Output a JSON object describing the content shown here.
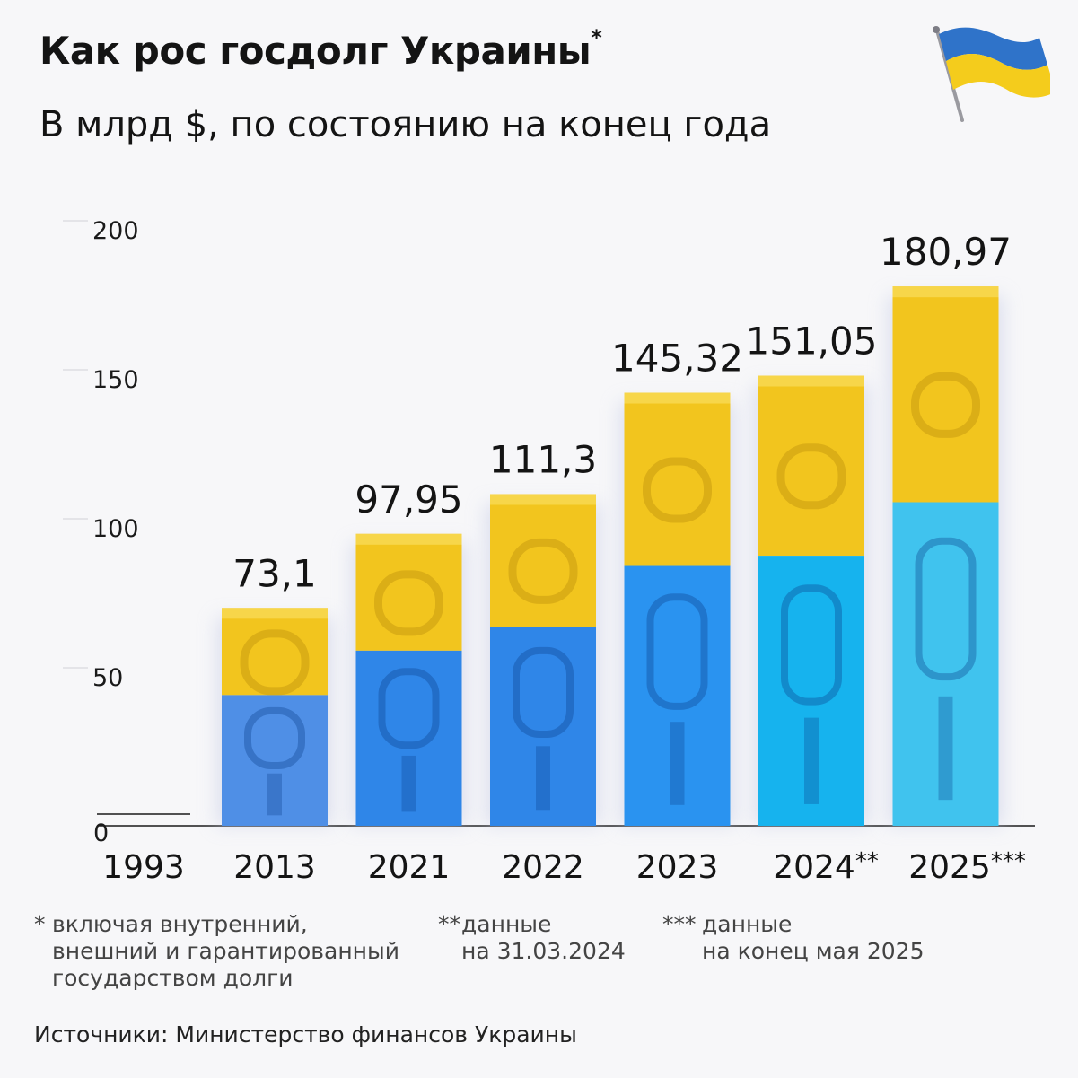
{
  "title": "Как рос госдолг Украины",
  "title_mark": "*",
  "subtitle": "В млрд $, по состоянию на конец года",
  "chart_data": {
    "type": "bar",
    "categories": [
      "1993",
      "2013",
      "2021",
      "2022",
      "2023",
      "2024",
      "2025"
    ],
    "category_marks": [
      "",
      "",
      "",
      "",
      "",
      "**",
      "***"
    ],
    "values": [
      0,
      73.1,
      97.95,
      111.3,
      145.32,
      151.05,
      180.97
    ],
    "value_labels": [
      "",
      "73,1",
      "97,95",
      "111,3",
      "145,32",
      "151,05",
      "180,97"
    ],
    "ylim": [
      0,
      200
    ],
    "yticks": [
      0,
      50,
      100,
      150,
      200
    ],
    "ytick_labels": [
      "0",
      "50",
      "100",
      "150",
      "200"
    ],
    "blue_share": 0.6,
    "colors": {
      "yellow": "#f2c51e",
      "yellow_dark": "#c99a10",
      "blue_2013": "#4f8fe6",
      "blue_mid": "#2f86e8",
      "blue_2023": "#2a93f0",
      "blue_2024": "#16b3ee",
      "blue_2025": "#40c3ee"
    }
  },
  "notes": [
    {
      "mark": "*",
      "lines": [
        "включая внутренний,",
        "внешний и гарантированный",
        "государством долги"
      ]
    },
    {
      "mark": "**",
      "lines": [
        "данные",
        "на 31.03.2024"
      ]
    },
    {
      "mark": "***",
      "lines": [
        "данные",
        "на конец мая 2025"
      ]
    }
  ],
  "source": "Источники: Министерство финансов Украины",
  "flag_icon": "ukraine-flag-icon"
}
